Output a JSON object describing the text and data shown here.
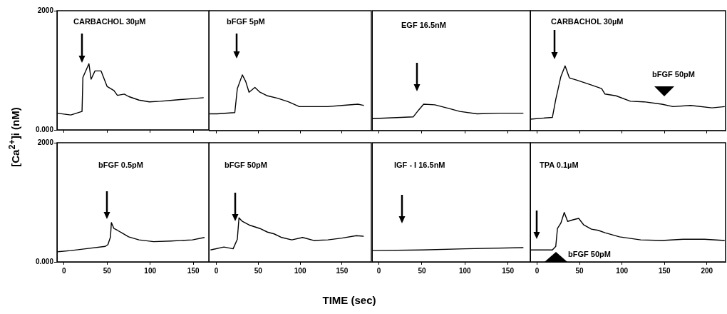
{
  "chart_data": [
    {
      "type": "line",
      "color": "#000000",
      "marker": "none",
      "ylabel": "[Ca$^{2+}$]i (nM)",
      "xlim": [
        -8,
        168
      ],
      "xticks": [
        0,
        50,
        100,
        150
      ],
      "ylim": [
        0,
        2000
      ],
      "yticks": [
        {
          "value": 0,
          "label": "0.000"
        },
        2000
      ],
      "tick_labels": "y",
      "x": [
        -8,
        8,
        21,
        22,
        29,
        31.5,
        36,
        43,
        50,
        58,
        62,
        70,
        75,
        87,
        99,
        112,
        128,
        145,
        162
      ],
      "values": [
        280,
        250,
        310,
        880,
        1110,
        850,
        990,
        990,
        730,
        660,
        580,
        600,
        560,
        500,
        470,
        480,
        500,
        520,
        540
      ],
      "annotations": [
        "CARBACHOL 30µM"
      ]
    },
    {
      "type": "line",
      "color": "#000000",
      "marker": "none",
      "xlim": [
        -9,
        185
      ],
      "xticks": [
        0,
        50,
        100,
        150
      ],
      "ylim": [
        0,
        2000
      ],
      "tick_labels": false,
      "x": [
        -8,
        1,
        22,
        25,
        31,
        35,
        39,
        46,
        52,
        61,
        73,
        86,
        99,
        116,
        133,
        150,
        169,
        176
      ],
      "values": [
        280,
        280,
        300,
        700,
        930,
        820,
        640,
        720,
        640,
        580,
        540,
        480,
        400,
        400,
        400,
        420,
        440,
        420
      ],
      "annotations": [
        "bFGF 5pM"
      ]
    },
    {
      "type": "line",
      "color": "#000000",
      "marker": "none",
      "xlim": [
        -8,
        176
      ],
      "xticks": [
        0,
        50,
        100,
        150
      ],
      "ylim": [
        0,
        2000
      ],
      "tick_labels": false,
      "x": [
        -8,
        40,
        46,
        52,
        65,
        81,
        94,
        114,
        139,
        168
      ],
      "values": [
        200,
        230,
        340,
        440,
        430,
        370,
        320,
        280,
        290,
        290
      ],
      "annotations": [
        "EGF 16.5nM"
      ]
    },
    {
      "type": "line",
      "color": "#000000",
      "marker": "none",
      "xlim": [
        -8,
        222
      ],
      "xticks": [
        0,
        50,
        100,
        150,
        200
      ],
      "ylim": [
        0,
        2000
      ],
      "tick_labels": false,
      "x": [
        -8,
        18,
        22,
        28,
        33,
        38,
        47,
        64,
        76,
        80,
        93,
        110,
        126,
        147,
        160,
        181,
        206,
        221
      ],
      "values": [
        190,
        220,
        520,
        900,
        1080,
        880,
        840,
        760,
        700,
        610,
        580,
        490,
        480,
        440,
        400,
        420,
        380,
        400
      ],
      "annotations": [
        "CARBACHOL 30µM",
        "bFGF 50pM"
      ]
    },
    {
      "type": "line",
      "color": "#000000",
      "marker": "none",
      "xlim": [
        -8,
        168
      ],
      "xticks": [
        0,
        50,
        100,
        150
      ],
      "ylim": [
        0,
        2000
      ],
      "yticks": [
        {
          "value": 0,
          "label": "0.000"
        },
        2000
      ],
      "x": [
        -7,
        8,
        25,
        48,
        51,
        54,
        55,
        58,
        62,
        68,
        75,
        87,
        104,
        124,
        149,
        163
      ],
      "values": [
        170,
        190,
        220,
        260,
        290,
        420,
        660,
        560,
        530,
        480,
        420,
        370,
        340,
        350,
        370,
        410
      ],
      "annotations": [
        "bFGF 0.5pM"
      ]
    },
    {
      "type": "line",
      "color": "#000000",
      "marker": "none",
      "xlabel": "TIME (sec)",
      "xlim": [
        -9,
        185
      ],
      "xticks": [
        0,
        50,
        100,
        150
      ],
      "ylim": [
        0,
        2000
      ],
      "tick_labels": "x",
      "x": [
        -7,
        9,
        20,
        25,
        27,
        31,
        39,
        52,
        61,
        69,
        78,
        90,
        103,
        116,
        133,
        150,
        167,
        176
      ],
      "values": [
        200,
        250,
        220,
        380,
        740,
        680,
        620,
        560,
        500,
        470,
        410,
        370,
        410,
        360,
        370,
        400,
        440,
        430
      ],
      "annotations": [
        "bFGF 50pM"
      ]
    },
    {
      "type": "line",
      "color": "#000000",
      "marker": "none",
      "xlim": [
        -8,
        176
      ],
      "xticks": [
        0,
        50,
        100,
        150
      ],
      "ylim": [
        0,
        2000
      ],
      "tick_labels": "x",
      "x": [
        -8,
        50,
        100,
        168
      ],
      "values": [
        190,
        200,
        220,
        240
      ],
      "annotations": [
        "IGF - I 16.5nM"
      ]
    },
    {
      "type": "line",
      "color": "#000000",
      "marker": "none",
      "xlim": [
        -8,
        222
      ],
      "xticks": [
        0,
        50,
        100,
        150,
        200
      ],
      "ylim": [
        0,
        2000
      ],
      "tick_labels": "x",
      "x": [
        -8,
        18,
        22,
        24,
        28,
        32,
        36,
        43,
        49,
        55,
        64,
        72,
        80,
        97,
        122,
        147,
        172,
        197,
        221
      ],
      "values": [
        200,
        200,
        260,
        560,
        650,
        830,
        680,
        710,
        730,
        620,
        550,
        530,
        490,
        420,
        370,
        360,
        380,
        380,
        360
      ],
      "annotations": [
        "TPA 0.1µM",
        "bFGF 50pM"
      ]
    }
  ]
}
